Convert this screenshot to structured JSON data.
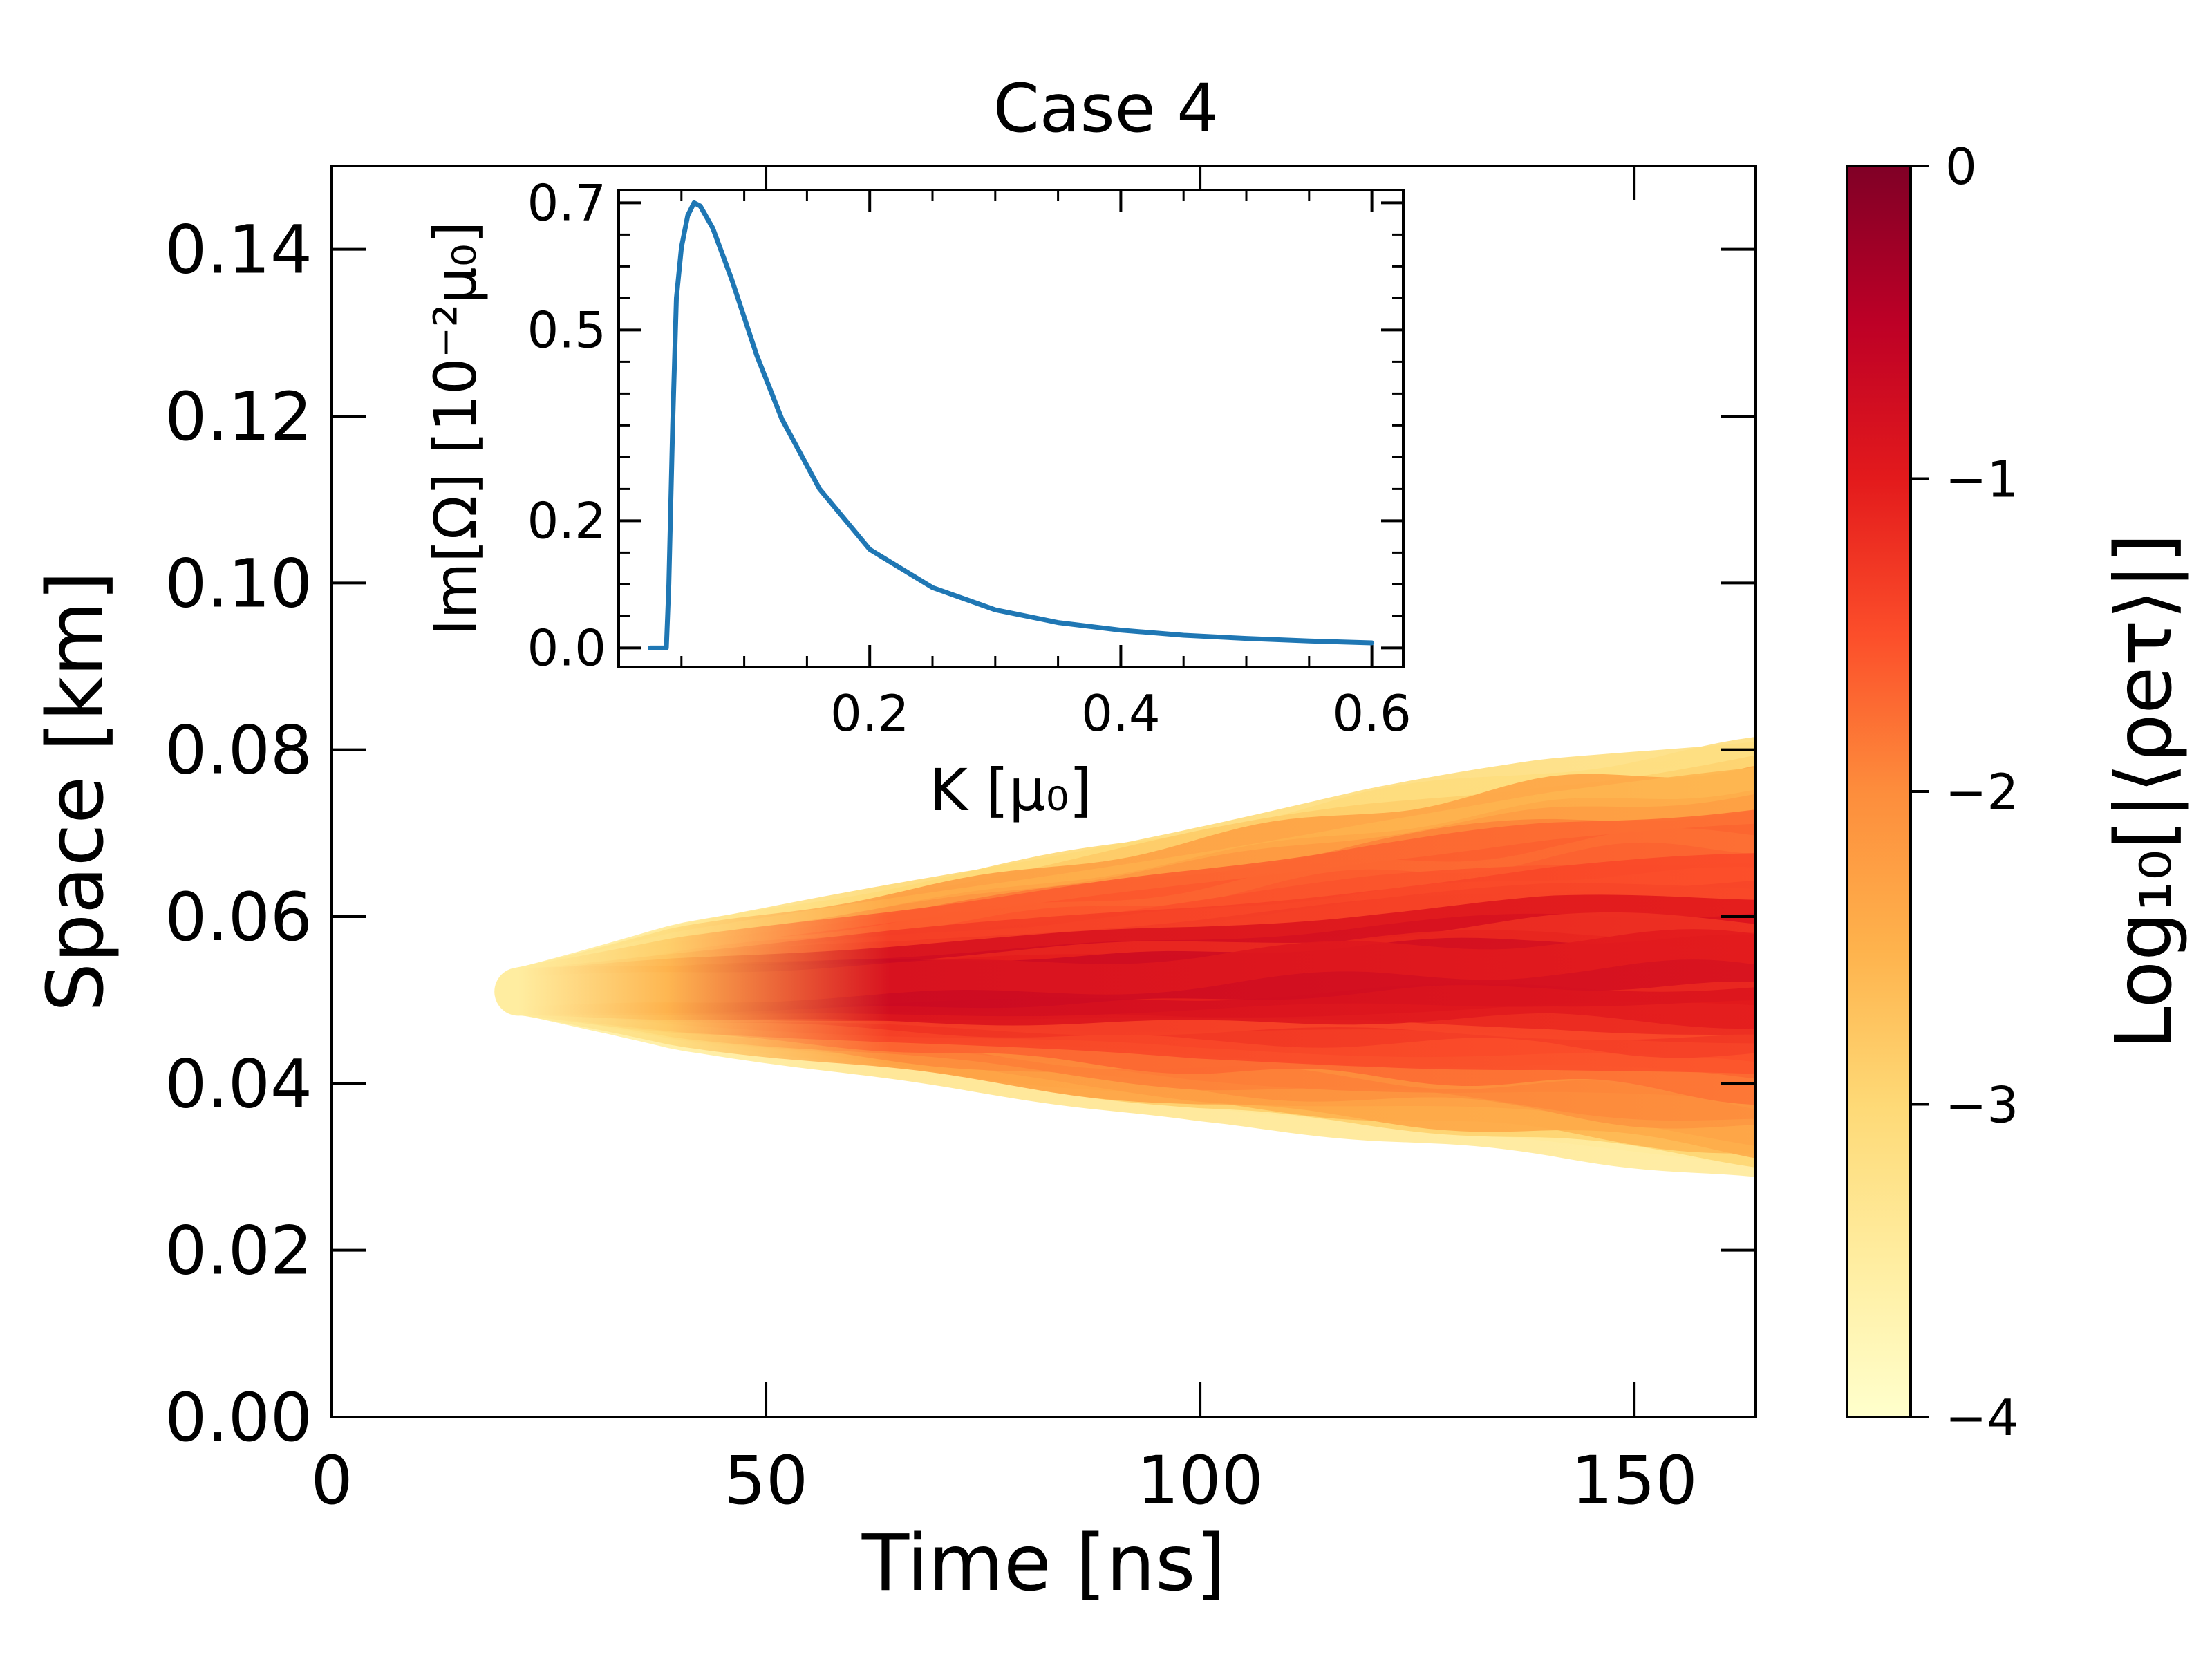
{
  "chart_data": [
    {
      "id": "main",
      "type": "heatmap",
      "title": "Case 4",
      "xlabel": "Time [ns]",
      "ylabel": "Space [km]",
      "xlim": [
        0,
        164
      ],
      "ylim": [
        0,
        0.15
      ],
      "xticks": [
        0,
        50,
        100,
        150
      ],
      "xtick_labels": [
        "0",
        "50",
        "100",
        "150"
      ],
      "yticks": [
        0.0,
        0.02,
        0.04,
        0.06,
        0.08,
        0.1,
        0.12,
        0.14
      ],
      "ytick_labels": [
        "0.00",
        "0.02",
        "0.04",
        "0.06",
        "0.08",
        "0.10",
        "0.12",
        "0.14"
      ],
      "plume": {
        "onset_time": 21.5,
        "center_at_onset": 0.051,
        "upper_edge": [
          [
            21.5,
            0.051
          ],
          [
            40,
            0.0565
          ],
          [
            60,
            0.0605
          ],
          [
            80,
            0.0645
          ],
          [
            100,
            0.0688
          ],
          [
            120,
            0.073
          ],
          [
            140,
            0.0765
          ],
          [
            164,
            0.0795
          ]
        ],
        "lower_edge": [
          [
            21.5,
            0.051
          ],
          [
            40,
            0.0465
          ],
          [
            60,
            0.0435
          ],
          [
            80,
            0.0405
          ],
          [
            100,
            0.0375
          ],
          [
            120,
            0.0355
          ],
          [
            140,
            0.0335
          ],
          [
            164,
            0.0305
          ]
        ],
        "peak_log_value_inside": -0.85,
        "edge_log_value": -3.6
      }
    },
    {
      "id": "inset",
      "type": "line",
      "xlabel": "K [μ₀]",
      "ylabel": "Im[Ω] [10⁻²μ₀]",
      "xlim": [
        0.0,
        0.625
      ],
      "ylim": [
        -0.03,
        0.72
      ],
      "xticks": [
        0.2,
        0.4,
        0.6
      ],
      "xtick_labels": [
        "0.2",
        "0.4",
        "0.6"
      ],
      "yticks": [
        0.0,
        0.2,
        0.5,
        0.7
      ],
      "ytick_labels": [
        "0.0",
        "0.2",
        "0.5",
        "0.7"
      ],
      "series": [
        {
          "name": "Im[Ω]",
          "color": "#1f77b4",
          "x": [
            0.025,
            0.038,
            0.04,
            0.043,
            0.046,
            0.05,
            0.055,
            0.06,
            0.065,
            0.075,
            0.09,
            0.11,
            0.13,
            0.16,
            0.2,
            0.25,
            0.3,
            0.35,
            0.4,
            0.45,
            0.5,
            0.55,
            0.6
          ],
          "y": [
            0.0,
            0.0,
            0.1,
            0.35,
            0.55,
            0.63,
            0.68,
            0.7,
            0.695,
            0.66,
            0.58,
            0.46,
            0.36,
            0.25,
            0.155,
            0.095,
            0.06,
            0.04,
            0.028,
            0.02,
            0.015,
            0.011,
            0.008
          ]
        }
      ]
    },
    {
      "id": "colorbar",
      "type": "colorbar",
      "label": "Log₁₀[|⟨ρeτ⟩|]",
      "range": [
        -4,
        0
      ],
      "ticks": [
        0,
        -1,
        -2,
        -3,
        -4
      ],
      "tick_labels": [
        "0",
        "−1",
        "−2",
        "−3",
        "−4"
      ],
      "colormap": "YlOrRd",
      "colors": [
        "#ffffcc",
        "#ffeda0",
        "#fed976",
        "#feb24c",
        "#fd8d3c",
        "#fc4e2a",
        "#e31a1c",
        "#bd0026",
        "#800026"
      ]
    }
  ]
}
